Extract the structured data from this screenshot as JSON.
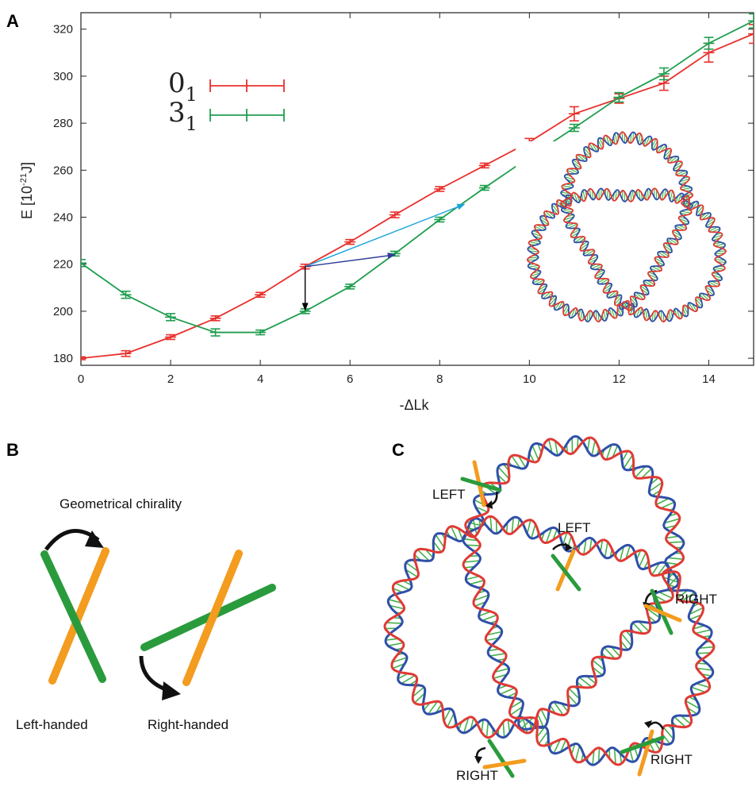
{
  "panels": {
    "a": {
      "letter": "A"
    },
    "b": {
      "letter": "B",
      "caption": "Geometrical chirality",
      "left_label": "Left-handed",
      "right_label": "Right-handed"
    },
    "c": {
      "letter": "C",
      "labels": [
        "LEFT",
        "LEFT",
        "RIGHT",
        "RIGHT",
        "RIGHT"
      ]
    }
  },
  "chart_data": {
    "type": "line",
    "title": "",
    "xlabel": "-ΔLk",
    "ylabel_main": "E [10",
    "ylabel_exp": "-21",
    "ylabel_tail": "J]",
    "xlim": [
      0,
      15
    ],
    "ylim": [
      177,
      327
    ],
    "xticks": [
      0,
      2,
      4,
      6,
      8,
      10,
      12,
      14
    ],
    "yticks": [
      180,
      200,
      220,
      240,
      260,
      280,
      300,
      320
    ],
    "grid": false,
    "legend_position": "top-left",
    "series": [
      {
        "name_main": "0",
        "name_sub": "1",
        "color": "#e8302c",
        "x": [
          0,
          1,
          2,
          3,
          4,
          5,
          6,
          7,
          8,
          9,
          10,
          11,
          12,
          13,
          14,
          15
        ],
        "y": [
          180,
          182,
          189,
          197,
          207,
          219,
          229.5,
          241,
          252,
          262,
          272,
          284,
          290.5,
          297,
          310,
          318
        ],
        "err": [
          0.6,
          1.2,
          1,
          1,
          1,
          1,
          1,
          1.2,
          1,
          1,
          1.5,
          3,
          2,
          3,
          4,
          4
        ]
      },
      {
        "name_main": "3",
        "name_sub": "1",
        "color": "#1f9e4f",
        "x": [
          0,
          1,
          2,
          3,
          4,
          5,
          6,
          7,
          8,
          9,
          10,
          11,
          12,
          13,
          14,
          15
        ],
        "y": [
          220.5,
          207,
          197.5,
          191,
          191,
          200,
          210.5,
          224.5,
          239,
          252.5,
          265.5,
          278,
          291,
          301,
          314,
          323.5
        ],
        "err": [
          1.5,
          1.5,
          1.5,
          1.5,
          1,
          1,
          1,
          1,
          1,
          1,
          1,
          1.5,
          2,
          2.5,
          2.5,
          3
        ]
      }
    ],
    "arrows": [
      {
        "color": "#1aa3d9",
        "from": [
          5,
          219
        ],
        "to": [
          8.55,
          245.5
        ]
      },
      {
        "color": "#2f3d9a",
        "from": [
          5,
          219
        ],
        "to": [
          7.0,
          224
        ]
      },
      {
        "color": "#000000",
        "from": [
          5,
          219
        ],
        "to": [
          5,
          200.5
        ]
      }
    ]
  },
  "colors": {
    "green": "#2a9b3c",
    "orange": "#f39c1f",
    "red": "#e03a35",
    "blue": "#2f4fa8",
    "rung": "#43b04a"
  }
}
